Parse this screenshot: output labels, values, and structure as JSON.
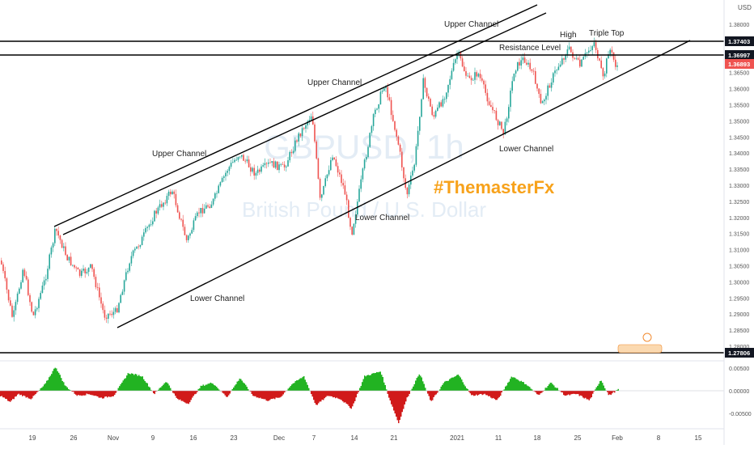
{
  "chart_data": {
    "type": "candlestick",
    "currency_label": "USD",
    "watermark": {
      "symbol": "GBPUSD, 1h",
      "name": "British Pound / U.S. Dollar"
    },
    "brand_tag": "#ThemasterFx",
    "y_ticks": [
      "1.38000",
      "1.37500",
      "1.37000",
      "1.36500",
      "1.36000",
      "1.35500",
      "1.35000",
      "1.34500",
      "1.34000",
      "1.33500",
      "1.33000",
      "1.32500",
      "1.32000",
      "1.31500",
      "1.31000",
      "1.30500",
      "1.30000",
      "1.29500",
      "1.29000",
      "1.28500",
      "1.28000"
    ],
    "x_ticks": [
      "19",
      "26",
      "Nov",
      "9",
      "16",
      "23",
      "Dec",
      "7",
      "14",
      "21",
      "2021",
      "11",
      "18",
      "25",
      "Feb",
      "8",
      "15"
    ],
    "price_tags": [
      {
        "label": "1.37403",
        "value": 1.37403,
        "style": "dark"
      },
      {
        "label": "1.36997",
        "value": 1.36997,
        "style": "dark"
      },
      {
        "label": "1.36893",
        "value": 1.36893,
        "style": "red"
      },
      {
        "label": "1.27806",
        "value": 1.27806,
        "style": "dark"
      }
    ],
    "horizontal_levels": [
      1.37403,
      1.36997,
      1.27806
    ],
    "annotations": [
      "Upper Channel",
      "Upper Channel",
      "Upper Channel",
      "Resistance Level",
      "High",
      "Triple Top",
      "Lower Channel",
      "Lower Channel",
      "Lower Channel"
    ],
    "oscillator": {
      "y_ticks": [
        "0.00500",
        "0.00000",
        "-0.00500"
      ],
      "colors": {
        "positive": "#22b322",
        "negative": "#d11a1a"
      }
    },
    "colors": {
      "up": "#26a69a",
      "down": "#ef5350",
      "line": "#000000",
      "brand": "#f7a21b",
      "watermark": "#e3ecf5"
    }
  }
}
